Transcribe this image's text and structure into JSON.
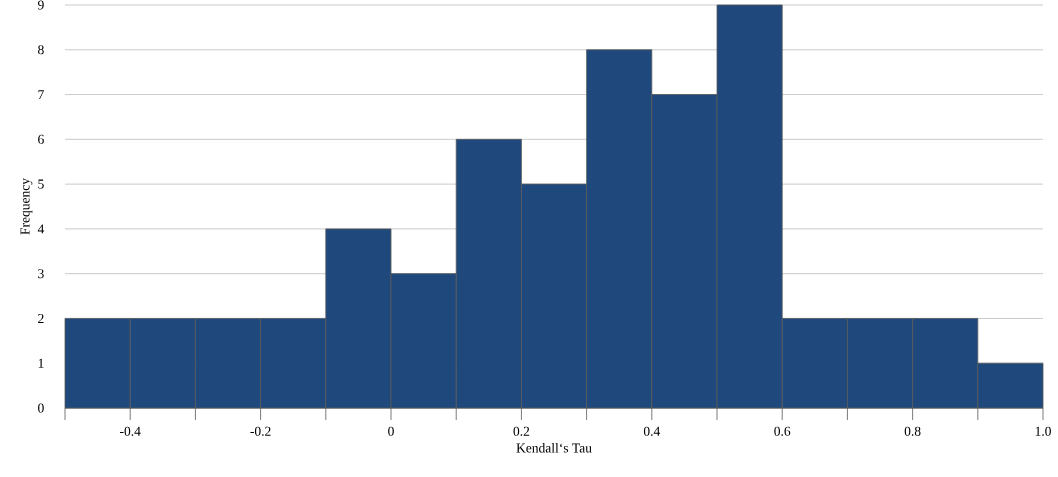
{
  "chart_data": {
    "type": "histogram",
    "xlabel": "Kendall‘s Tau",
    "ylabel": "Frequency",
    "bins": [
      -0.5,
      -0.4,
      -0.3,
      -0.2,
      -0.1,
      0,
      0.1,
      0.2,
      0.3,
      0.4,
      0.5,
      0.6,
      0.7,
      0.8,
      0.9,
      1.0
    ],
    "values": [
      2,
      2,
      2,
      2,
      4,
      3,
      6,
      5,
      8,
      7,
      9,
      2,
      2,
      2,
      1
    ],
    "color": "#1f497d",
    "xlim": [
      -0.5,
      1.0
    ],
    "xticks": [
      {
        "value": -0.5,
        "label": null
      },
      -0.4,
      {
        "value": -0.3,
        "label": null
      },
      -0.2,
      {
        "value": -0.1,
        "label": null
      },
      0,
      {
        "value": 0.1,
        "label": null
      },
      0.2,
      {
        "value": 0.3,
        "label": null
      },
      0.4,
      {
        "value": 0.5,
        "label": null
      },
      0.6,
      {
        "value": 0.7,
        "label": null
      },
      0.8,
      {
        "value": 0.9,
        "label": null
      },
      {
        "value": 1.0,
        "label": "1.0"
      }
    ],
    "ylim": [
      0,
      9
    ],
    "yticks": [
      0,
      1,
      2,
      3,
      4,
      5,
      6,
      7,
      8,
      9
    ],
    "grid": "y"
  }
}
